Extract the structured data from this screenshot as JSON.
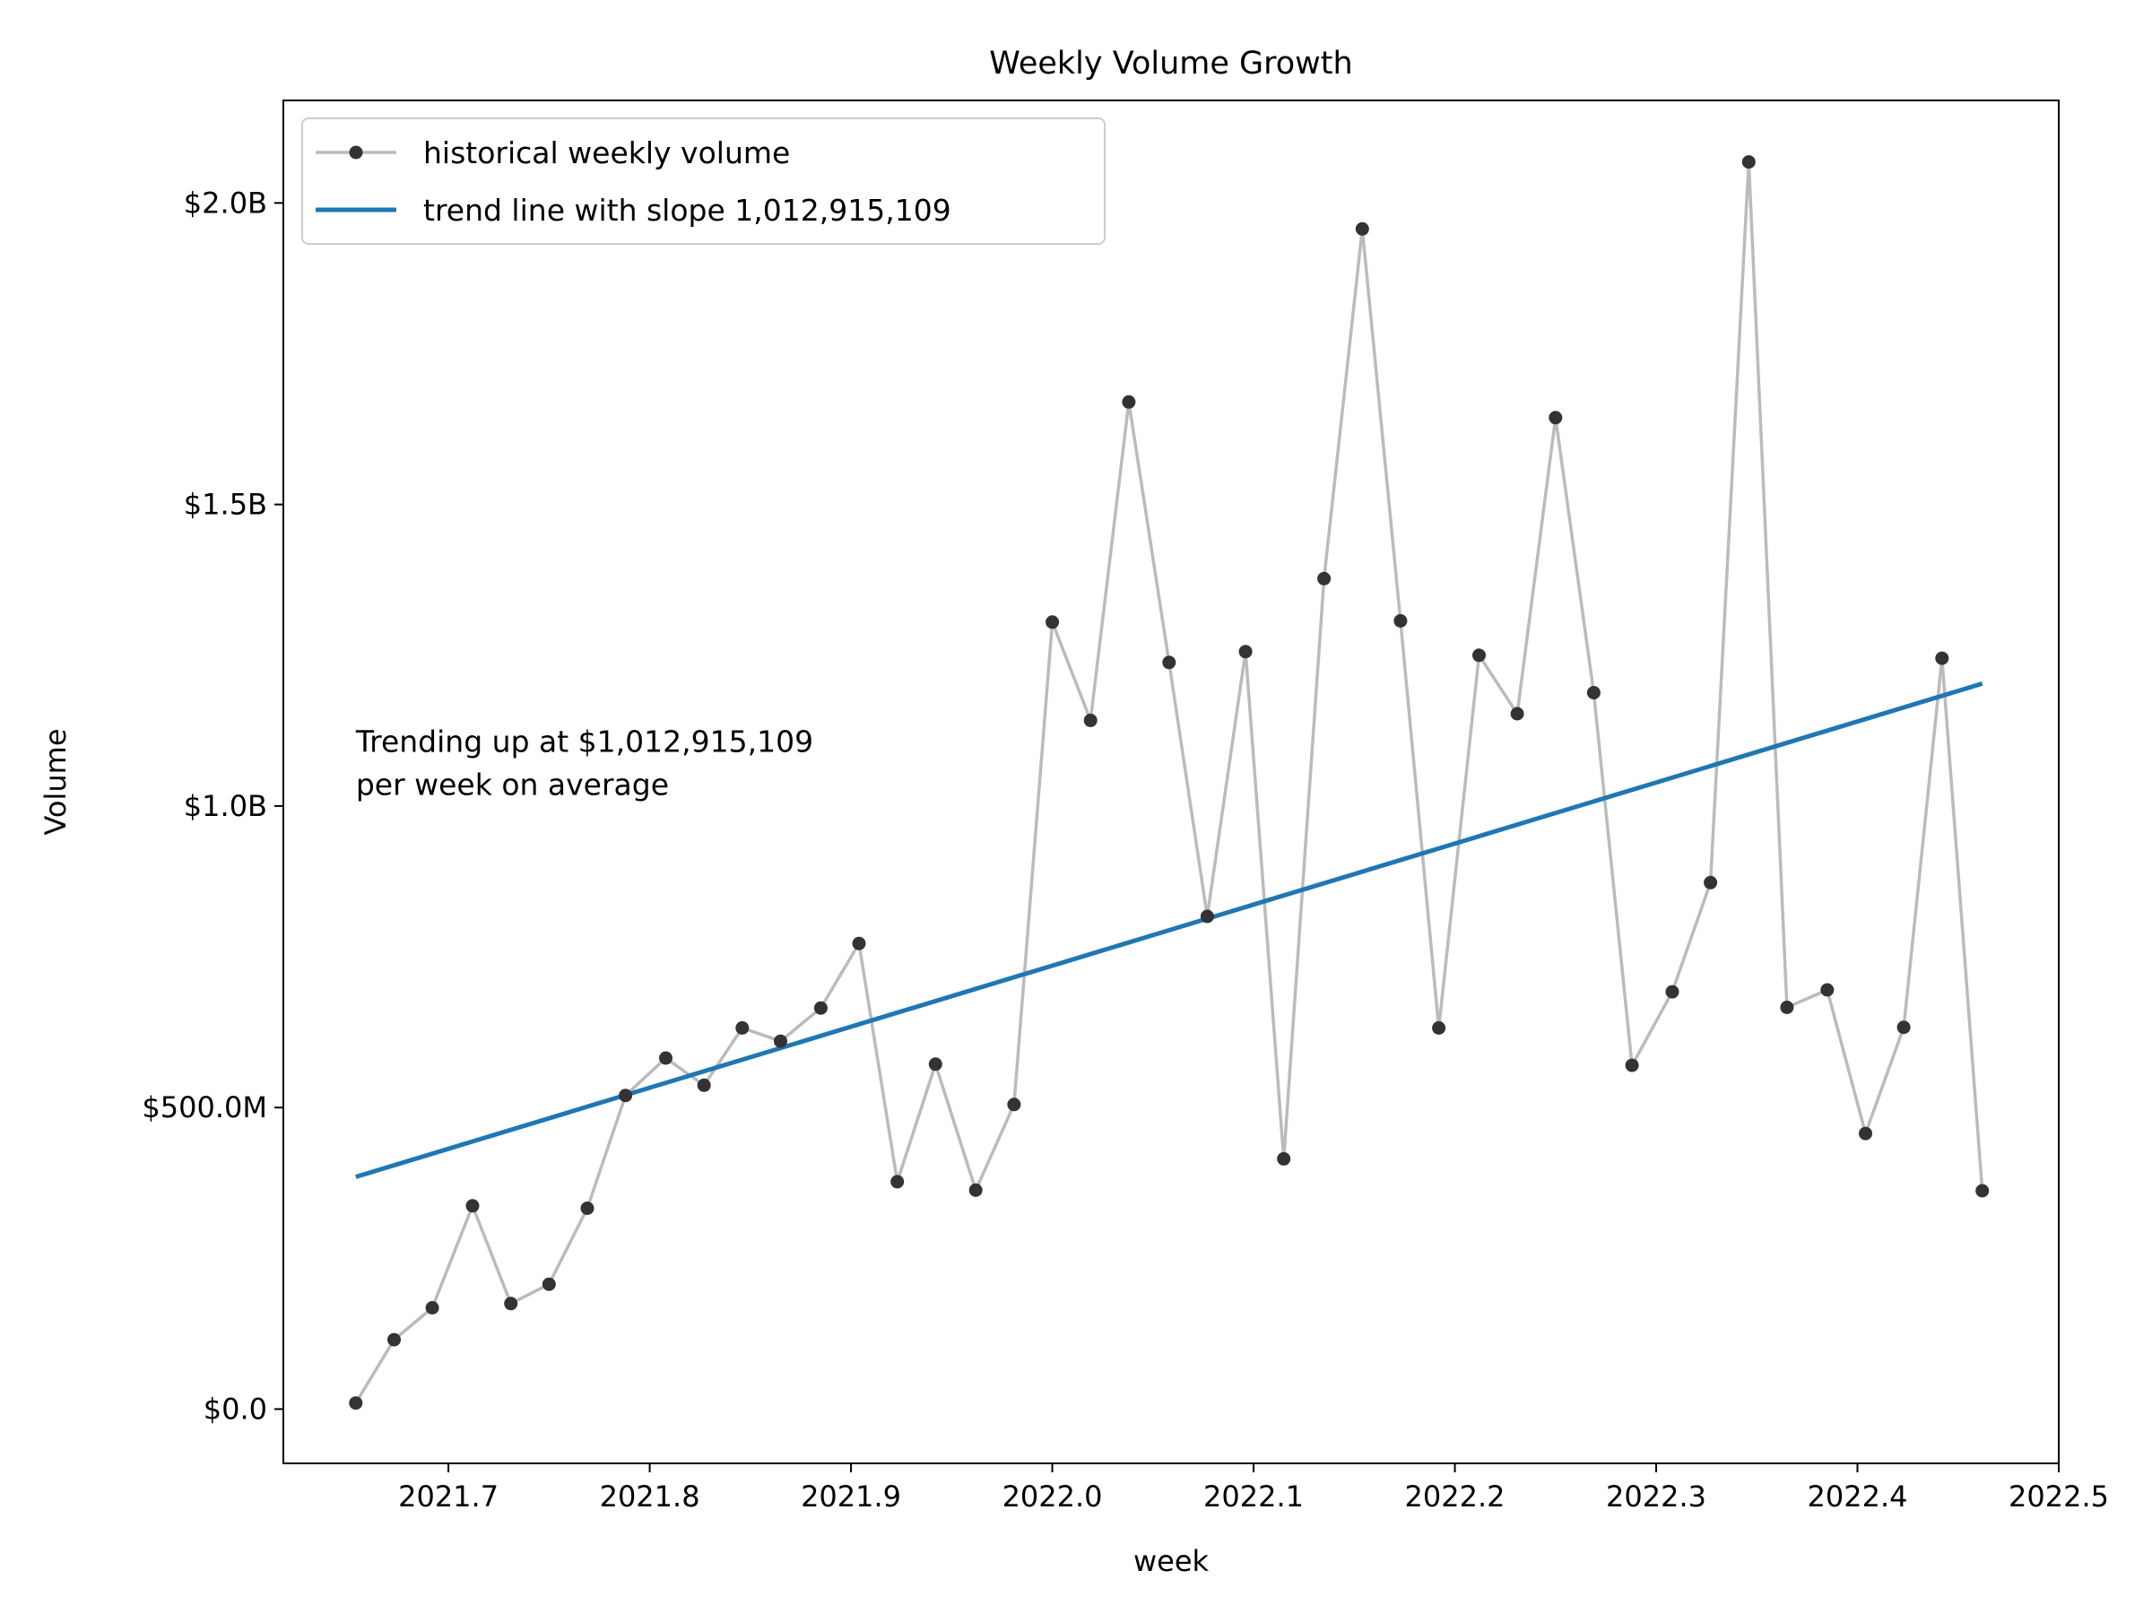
{
  "chart_data": {
    "type": "line",
    "title": "Weekly Volume Growth",
    "xlabel": "week",
    "ylabel": "Volume",
    "xlim": [
      2021.618,
      2022.5
    ],
    "ylim": [
      -90000000,
      2170000000
    ],
    "xticks": [
      2021.7,
      2021.8,
      2021.9,
      2022.0,
      2022.1,
      2022.2,
      2022.3,
      2022.4,
      2022.5
    ],
    "xtick_labels": [
      "2021.7",
      "2021.8",
      "2021.9",
      "2022.0",
      "2022.1",
      "2022.2",
      "2022.3",
      "2022.4",
      "2022.5"
    ],
    "yticks": [
      0,
      500000000,
      1000000000,
      1500000000,
      2000000000
    ],
    "ytick_labels": [
      "$0.0",
      "$500.0M",
      "$1.0B",
      "$1.5B",
      "$2.0B"
    ],
    "grid": false,
    "legend_position": "top-left",
    "series": [
      {
        "name": "historical weekly volume",
        "color": "#bbbbbb",
        "marker_color": "#333333",
        "x": [
          2021.654,
          2021.673,
          2021.692,
          2021.712,
          2021.731,
          2021.75,
          2021.769,
          2021.788,
          2021.808,
          2021.827,
          2021.846,
          2021.865,
          2021.885,
          2021.904,
          2021.923,
          2021.942,
          2021.962,
          2021.981,
          2022.0,
          2022.019,
          2022.038,
          2022.058,
          2022.077,
          2022.096,
          2022.115,
          2022.135,
          2022.154,
          2022.173,
          2022.192,
          2022.212,
          2022.231,
          2022.25,
          2022.269,
          2022.288,
          2022.308,
          2022.327,
          2022.346,
          2022.365,
          2022.385,
          2022.404,
          2022.423,
          2022.442,
          2022.462
        ],
        "y": [
          10000000,
          115000000,
          168000000,
          337000000,
          175000000,
          207000000,
          333000000,
          520000000,
          582000000,
          537000000,
          632000000,
          610000000,
          665000000,
          772000000,
          377000000,
          572000000,
          363000000,
          505000000,
          1305000000,
          1142000000,
          1670000000,
          1238000000,
          817000000,
          1256000000,
          415000000,
          1377000000,
          1957000000,
          1307000000,
          632000000,
          1250000000,
          1153000000,
          1644000000,
          1188000000,
          570000000,
          692000000,
          873000000,
          2068000000,
          666000000,
          695000000,
          457000000,
          633000000,
          1245000000,
          362000000
        ]
      },
      {
        "name": "trend line with slope 1,012,915,109",
        "color": "#1f77b4",
        "x": [
          2021.654,
          2022.462
        ],
        "y": [
          385000000,
          1203000000
        ]
      }
    ],
    "annotation": {
      "lines": [
        "Trending up at $1,012,915,109",
        "per week on average"
      ],
      "x": 2021.654,
      "y": 1090000000
    }
  }
}
